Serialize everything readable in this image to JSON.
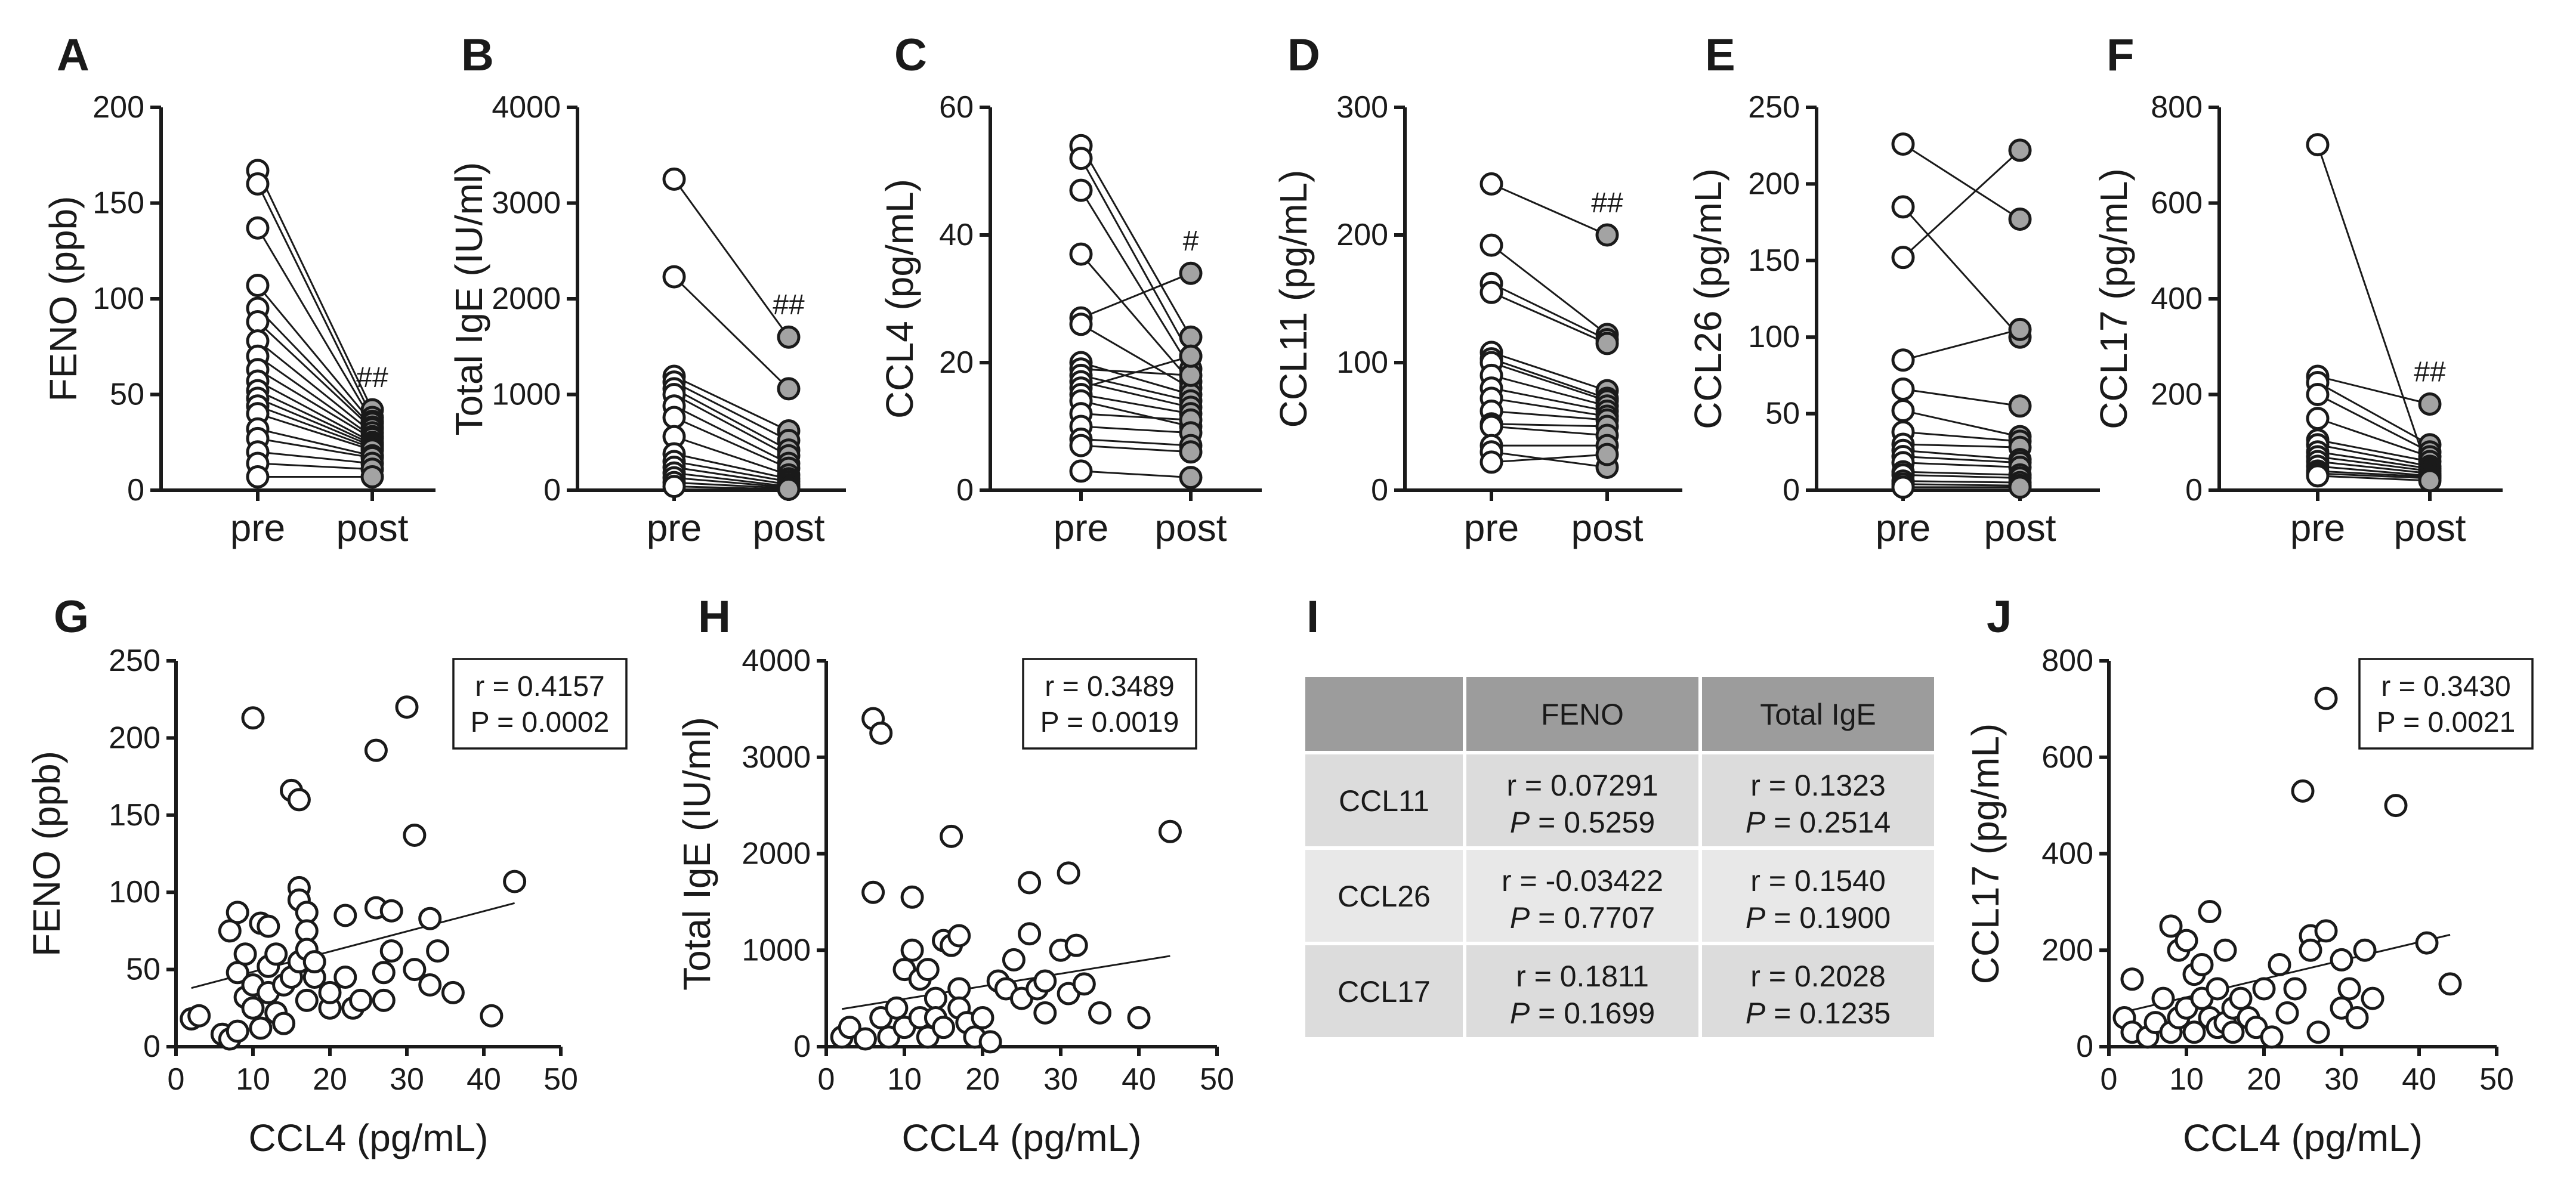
{
  "chart_data": [
    {
      "letter": "A",
      "type": "paired-line",
      "ylabel": "FENO (ppb)",
      "categories": [
        "pre",
        "post"
      ],
      "ylim": [
        0,
        200
      ],
      "yticks": [
        "0",
        "50",
        "100",
        "150",
        "200"
      ],
      "mark": "##",
      "pairs": [
        [
          167,
          42
        ],
        [
          160,
          38
        ],
        [
          137,
          36
        ],
        [
          107,
          35
        ],
        [
          95,
          33
        ],
        [
          88,
          32
        ],
        [
          78,
          30
        ],
        [
          70,
          28
        ],
        [
          63,
          27
        ],
        [
          57,
          25
        ],
        [
          52,
          24
        ],
        [
          48,
          23
        ],
        [
          44,
          22
        ],
        [
          40,
          21
        ],
        [
          32,
          18
        ],
        [
          27,
          17
        ],
        [
          20,
          14
        ],
        [
          14,
          11
        ],
        [
          7,
          7
        ]
      ]
    },
    {
      "letter": "B",
      "type": "paired-line",
      "ylabel": "Total IgE (IU/ml)",
      "categories": [
        "pre",
        "post"
      ],
      "ylim": [
        0,
        4000
      ],
      "yticks": [
        "0",
        "1000",
        "2000",
        "3000",
        "4000"
      ],
      "mark": "##",
      "pairs": [
        [
          3250,
          1600
        ],
        [
          2230,
          1060
        ],
        [
          1190,
          620
        ],
        [
          1130,
          520
        ],
        [
          1060,
          420
        ],
        [
          1000,
          360
        ],
        [
          880,
          280
        ],
        [
          760,
          230
        ],
        [
          560,
          160
        ],
        [
          380,
          120
        ],
        [
          300,
          90
        ],
        [
          240,
          60
        ],
        [
          180,
          40
        ],
        [
          130,
          30
        ],
        [
          80,
          20
        ],
        [
          40,
          10
        ]
      ]
    },
    {
      "letter": "C",
      "type": "paired-line",
      "ylabel": "CCL4 (pg/mL)",
      "categories": [
        "pre",
        "post"
      ],
      "ylim": [
        0,
        60
      ],
      "yticks": [
        "0",
        "20",
        "40",
        "60"
      ],
      "mark": "#",
      "pairs": [
        [
          54,
          24
        ],
        [
          52,
          21
        ],
        [
          47,
          19
        ],
        [
          37,
          17
        ],
        [
          27,
          34
        ],
        [
          26,
          16
        ],
        [
          20,
          15
        ],
        [
          19,
          18
        ],
        [
          18,
          14
        ],
        [
          17,
          13
        ],
        [
          16,
          21
        ],
        [
          15,
          12
        ],
        [
          14,
          10
        ],
        [
          12,
          11
        ],
        [
          10,
          9
        ],
        [
          8,
          7
        ],
        [
          7,
          6
        ],
        [
          3,
          2
        ]
      ]
    },
    {
      "letter": "D",
      "type": "paired-line",
      "ylabel": "CCL11 (pg/mL)",
      "categories": [
        "pre",
        "post"
      ],
      "ylim": [
        0,
        300
      ],
      "yticks": [
        "0",
        "100",
        "200",
        "300"
      ],
      "mark": "##",
      "pairs": [
        [
          240,
          200
        ],
        [
          192,
          122
        ],
        [
          162,
          118
        ],
        [
          155,
          115
        ],
        [
          108,
          78
        ],
        [
          103,
          72
        ],
        [
          100,
          70
        ],
        [
          90,
          66
        ],
        [
          80,
          62
        ],
        [
          72,
          58
        ],
        [
          62,
          55
        ],
        [
          52,
          50
        ],
        [
          50,
          43
        ],
        [
          35,
          35
        ],
        [
          30,
          18
        ],
        [
          22,
          28
        ]
      ]
    },
    {
      "letter": "E",
      "type": "paired-line",
      "ylabel": "CCL26 (pg/mL)",
      "categories": [
        "pre",
        "post"
      ],
      "ylim": [
        0,
        250
      ],
      "yticks": [
        "0",
        "50",
        "100",
        "150",
        "200",
        "250"
      ],
      "mark": "",
      "pairs": [
        [
          226,
          177
        ],
        [
          185,
          100
        ],
        [
          152,
          222
        ],
        [
          85,
          105
        ],
        [
          66,
          55
        ],
        [
          52,
          35
        ],
        [
          38,
          32
        ],
        [
          30,
          28
        ],
        [
          26,
          20
        ],
        [
          22,
          18
        ],
        [
          18,
          15
        ],
        [
          12,
          10
        ],
        [
          10,
          8
        ],
        [
          6,
          5
        ],
        [
          4,
          3
        ],
        [
          2,
          2
        ]
      ]
    },
    {
      "letter": "F",
      "type": "paired-line",
      "ylabel": "CCL17 (pg/mL)",
      "categories": [
        "pre",
        "post"
      ],
      "ylim": [
        0,
        800
      ],
      "yticks": [
        "0",
        "200",
        "400",
        "600",
        "800"
      ],
      "mark": "##",
      "pairs": [
        [
          722,
          30
        ],
        [
          238,
          180
        ],
        [
          225,
          95
        ],
        [
          200,
          80
        ],
        [
          150,
          70
        ],
        [
          105,
          60
        ],
        [
          95,
          50
        ],
        [
          80,
          45
        ],
        [
          70,
          40
        ],
        [
          60,
          35
        ],
        [
          50,
          30
        ],
        [
          40,
          28
        ],
        [
          35,
          25
        ],
        [
          30,
          20
        ]
      ]
    },
    {
      "letter": "G",
      "type": "scatter",
      "xlabel": "CCL4 (pg/mL)",
      "ylabel": "FENO (ppb)",
      "xlim": [
        0,
        50
      ],
      "ylim": [
        0,
        250
      ],
      "xticks": [
        "0",
        "10",
        "20",
        "30",
        "40",
        "50"
      ],
      "yticks": [
        "0",
        "50",
        "100",
        "150",
        "200",
        "250"
      ],
      "stats": {
        "r": "r = 0.4157",
        "p": "P = 0.0002"
      },
      "fit": [
        [
          2,
          38
        ],
        [
          44,
          93
        ]
      ],
      "points": [
        [
          2,
          18
        ],
        [
          3,
          20
        ],
        [
          6,
          8
        ],
        [
          7,
          5
        ],
        [
          7,
          75
        ],
        [
          8,
          87
        ],
        [
          8,
          48
        ],
        [
          8,
          10
        ],
        [
          9,
          32
        ],
        [
          9,
          60
        ],
        [
          10,
          25
        ],
        [
          10,
          213
        ],
        [
          10,
          40
        ],
        [
          11,
          80
        ],
        [
          11,
          12
        ],
        [
          12,
          78
        ],
        [
          12,
          35
        ],
        [
          12,
          52
        ],
        [
          13,
          22
        ],
        [
          13,
          60
        ],
        [
          14,
          40
        ],
        [
          14,
          15
        ],
        [
          15,
          166
        ],
        [
          15,
          45
        ],
        [
          16,
          160
        ],
        [
          16,
          103
        ],
        [
          16,
          95
        ],
        [
          16,
          55
        ],
        [
          17,
          87
        ],
        [
          17,
          75
        ],
        [
          17,
          63
        ],
        [
          17,
          30
        ],
        [
          18,
          45
        ],
        [
          18,
          55
        ],
        [
          20,
          25
        ],
        [
          20,
          35
        ],
        [
          22,
          85
        ],
        [
          22,
          45
        ],
        [
          23,
          25
        ],
        [
          24,
          30
        ],
        [
          26,
          90
        ],
        [
          26,
          192
        ],
        [
          27,
          30
        ],
        [
          27,
          48
        ],
        [
          28,
          88
        ],
        [
          28,
          62
        ],
        [
          30,
          220
        ],
        [
          31,
          137
        ],
        [
          31,
          50
        ],
        [
          33,
          40
        ],
        [
          33,
          83
        ],
        [
          34,
          62
        ],
        [
          36,
          35
        ],
        [
          41,
          20
        ],
        [
          44,
          107
        ]
      ]
    },
    {
      "letter": "H",
      "type": "scatter",
      "xlabel": "CCL4 (pg/mL)",
      "ylabel": "Total IgE (IU/ml)",
      "xlim": [
        0,
        50
      ],
      "ylim": [
        0,
        4000
      ],
      "xticks": [
        "0",
        "10",
        "20",
        "30",
        "40",
        "50"
      ],
      "yticks": [
        "0",
        "1000",
        "2000",
        "3000",
        "4000"
      ],
      "stats": {
        "r": "r = 0.3489",
        "p": "P = 0.0019"
      },
      "fit": [
        [
          2,
          390
        ],
        [
          44,
          940
        ]
      ],
      "points": [
        [
          2,
          100
        ],
        [
          3,
          200
        ],
        [
          5,
          80
        ],
        [
          6,
          1600
        ],
        [
          6,
          3400
        ],
        [
          7,
          3250
        ],
        [
          7,
          300
        ],
        [
          8,
          100
        ],
        [
          9,
          400
        ],
        [
          10,
          800
        ],
        [
          10,
          200
        ],
        [
          11,
          1000
        ],
        [
          11,
          1550
        ],
        [
          12,
          300
        ],
        [
          12,
          700
        ],
        [
          13,
          100
        ],
        [
          13,
          800
        ],
        [
          14,
          500
        ],
        [
          14,
          300
        ],
        [
          15,
          1100
        ],
        [
          15,
          200
        ],
        [
          16,
          2180
        ],
        [
          16,
          1050
        ],
        [
          17,
          1150
        ],
        [
          17,
          600
        ],
        [
          17,
          400
        ],
        [
          18,
          250
        ],
        [
          19,
          100
        ],
        [
          20,
          300
        ],
        [
          21,
          50
        ],
        [
          22,
          680
        ],
        [
          23,
          600
        ],
        [
          24,
          900
        ],
        [
          25,
          500
        ],
        [
          26,
          1170
        ],
        [
          26,
          1700
        ],
        [
          27,
          600
        ],
        [
          28,
          680
        ],
        [
          28,
          350
        ],
        [
          30,
          1000
        ],
        [
          31,
          1800
        ],
        [
          31,
          550
        ],
        [
          32,
          1050
        ],
        [
          33,
          650
        ],
        [
          35,
          350
        ],
        [
          40,
          300
        ],
        [
          44,
          2230
        ]
      ]
    },
    {
      "letter": "I",
      "type": "table",
      "columns": [
        "",
        "FENO",
        "Total IgE"
      ],
      "rows": [
        {
          "label": "CCL11",
          "feno_r": "r = 0.07291",
          "feno_p": "P = 0.5259",
          "ige_r": "r = 0.1323",
          "ige_p": "P = 0.2514"
        },
        {
          "label": "CCL26",
          "feno_r": "r = -0.03422",
          "feno_p": "P = 0.7707",
          "ige_r": "r = 0.1540",
          "ige_p": "P = 0.1900"
        },
        {
          "label": "CCL17",
          "feno_r": "r = 0.1811",
          "feno_p": "P = 0.1699",
          "ige_r": "r = 0.2028",
          "ige_p": "P = 0.1235"
        }
      ]
    },
    {
      "letter": "J",
      "type": "scatter",
      "xlabel": "CCL4 (pg/mL)",
      "ylabel": "CCL17 (pg/mL)",
      "xlim": [
        0,
        50
      ],
      "ylim": [
        0,
        800
      ],
      "xticks": [
        "0",
        "10",
        "20",
        "30",
        "40",
        "50"
      ],
      "yticks": [
        "0",
        "200",
        "400",
        "600",
        "800"
      ],
      "stats": {
        "r": "r = 0.3430",
        "p": "P = 0.0021"
      },
      "fit": [
        [
          2,
          72
        ],
        [
          44,
          232
        ]
      ],
      "points": [
        [
          2,
          60
        ],
        [
          3,
          140
        ],
        [
          3,
          30
        ],
        [
          5,
          20
        ],
        [
          6,
          50
        ],
        [
          7,
          100
        ],
        [
          8,
          250
        ],
        [
          8,
          30
        ],
        [
          9,
          200
        ],
        [
          9,
          60
        ],
        [
          10,
          220
        ],
        [
          10,
          80
        ],
        [
          11,
          150
        ],
        [
          11,
          30
        ],
        [
          12,
          100
        ],
        [
          12,
          170
        ],
        [
          13,
          280
        ],
        [
          13,
          60
        ],
        [
          14,
          40
        ],
        [
          14,
          120
        ],
        [
          15,
          200
        ],
        [
          15,
          50
        ],
        [
          16,
          80
        ],
        [
          16,
          30
        ],
        [
          17,
          100
        ],
        [
          18,
          60
        ],
        [
          19,
          40
        ],
        [
          20,
          120
        ],
        [
          21,
          20
        ],
        [
          22,
          170
        ],
        [
          23,
          70
        ],
        [
          24,
          120
        ],
        [
          25,
          530
        ],
        [
          26,
          230
        ],
        [
          26,
          200
        ],
        [
          27,
          30
        ],
        [
          28,
          722
        ],
        [
          28,
          240
        ],
        [
          30,
          180
        ],
        [
          30,
          80
        ],
        [
          31,
          120
        ],
        [
          32,
          60
        ],
        [
          33,
          200
        ],
        [
          34,
          100
        ],
        [
          37,
          500
        ],
        [
          41,
          215
        ],
        [
          44,
          130
        ]
      ]
    }
  ]
}
